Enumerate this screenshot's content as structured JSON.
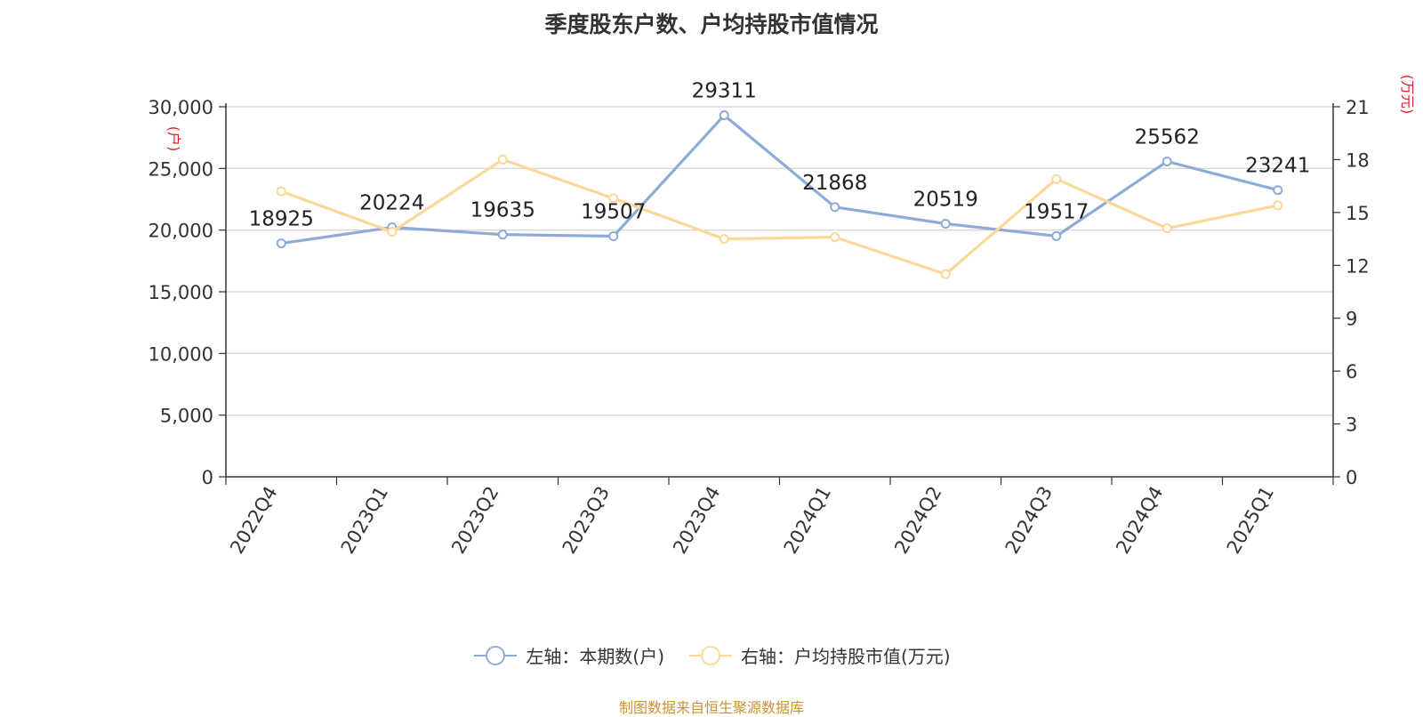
{
  "chart_data": {
    "type": "line",
    "title": "季度股东户数、户均持股市值情况",
    "categories": [
      "2022Q4",
      "2023Q1",
      "2023Q2",
      "2023Q3",
      "2023Q4",
      "2024Q1",
      "2024Q2",
      "2024Q3",
      "2024Q4",
      "2025Q1"
    ],
    "left_axis": {
      "unit_label": "(户)",
      "ylim": [
        0,
        30000
      ],
      "ticks": [
        "0",
        "5,000",
        "10,000",
        "15,000",
        "20,000",
        "25,000",
        "30,000"
      ]
    },
    "right_axis": {
      "unit_label": "(万元)",
      "ylim": [
        0,
        21
      ],
      "ticks": [
        "0",
        "3",
        "6",
        "9",
        "12",
        "15",
        "18",
        "21"
      ]
    },
    "series": [
      {
        "name": "左轴：本期数(户)",
        "axis": "left",
        "color": "#8eabd8",
        "values": [
          18925,
          20224,
          19635,
          19507,
          29311,
          21868,
          20519,
          19517,
          25562,
          23241
        ],
        "labels": [
          "18925",
          "20224",
          "19635",
          "19507",
          "29311",
          "21868",
          "20519",
          "19517",
          "25562",
          "23241"
        ]
      },
      {
        "name": "右轴：户均持股市值(万元)",
        "axis": "right",
        "color": "#fad898",
        "values": [
          16.2,
          13.9,
          18.0,
          15.8,
          13.5,
          13.6,
          11.5,
          16.9,
          14.1,
          15.4
        ]
      }
    ],
    "grid": true,
    "legend_position": "bottom"
  },
  "footer": {
    "source": "制图数据来自恒生聚源数据库"
  }
}
